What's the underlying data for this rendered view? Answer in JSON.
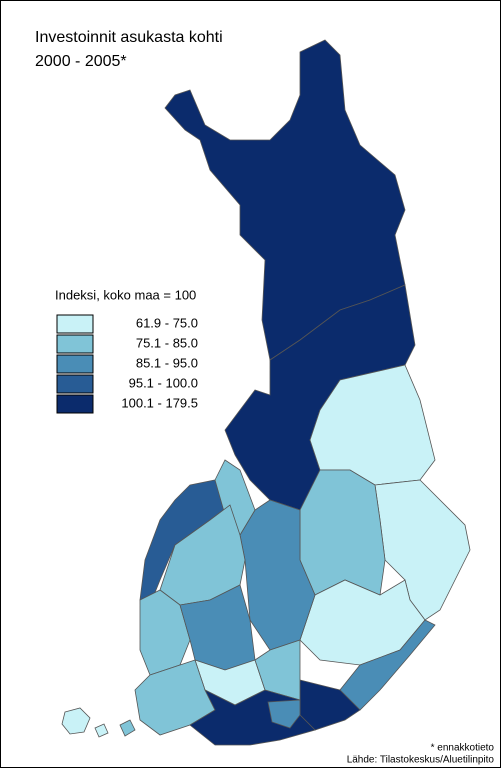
{
  "title": [
    "Investoinnit asukasta kohti",
    "2000 - 2005*"
  ],
  "legend": {
    "title": "Indeksi, koko maa = 100",
    "classes": [
      {
        "label": "61.9 - 75.0",
        "color": "#c9f2f7"
      },
      {
        "label": "75.1 - 85.0",
        "color": "#80c4d7"
      },
      {
        "label": "85.1 - 95.0",
        "color": "#4a8db6"
      },
      {
        "label": "95.1 - 100.0",
        "color": "#285c95"
      },
      {
        "label": "100.1 - 179.5",
        "color": "#0b2b6c"
      }
    ]
  },
  "footnote": "* ennakkotieto",
  "source": "Lähde: Tilastokeskus/Aluetilinpito"
}
